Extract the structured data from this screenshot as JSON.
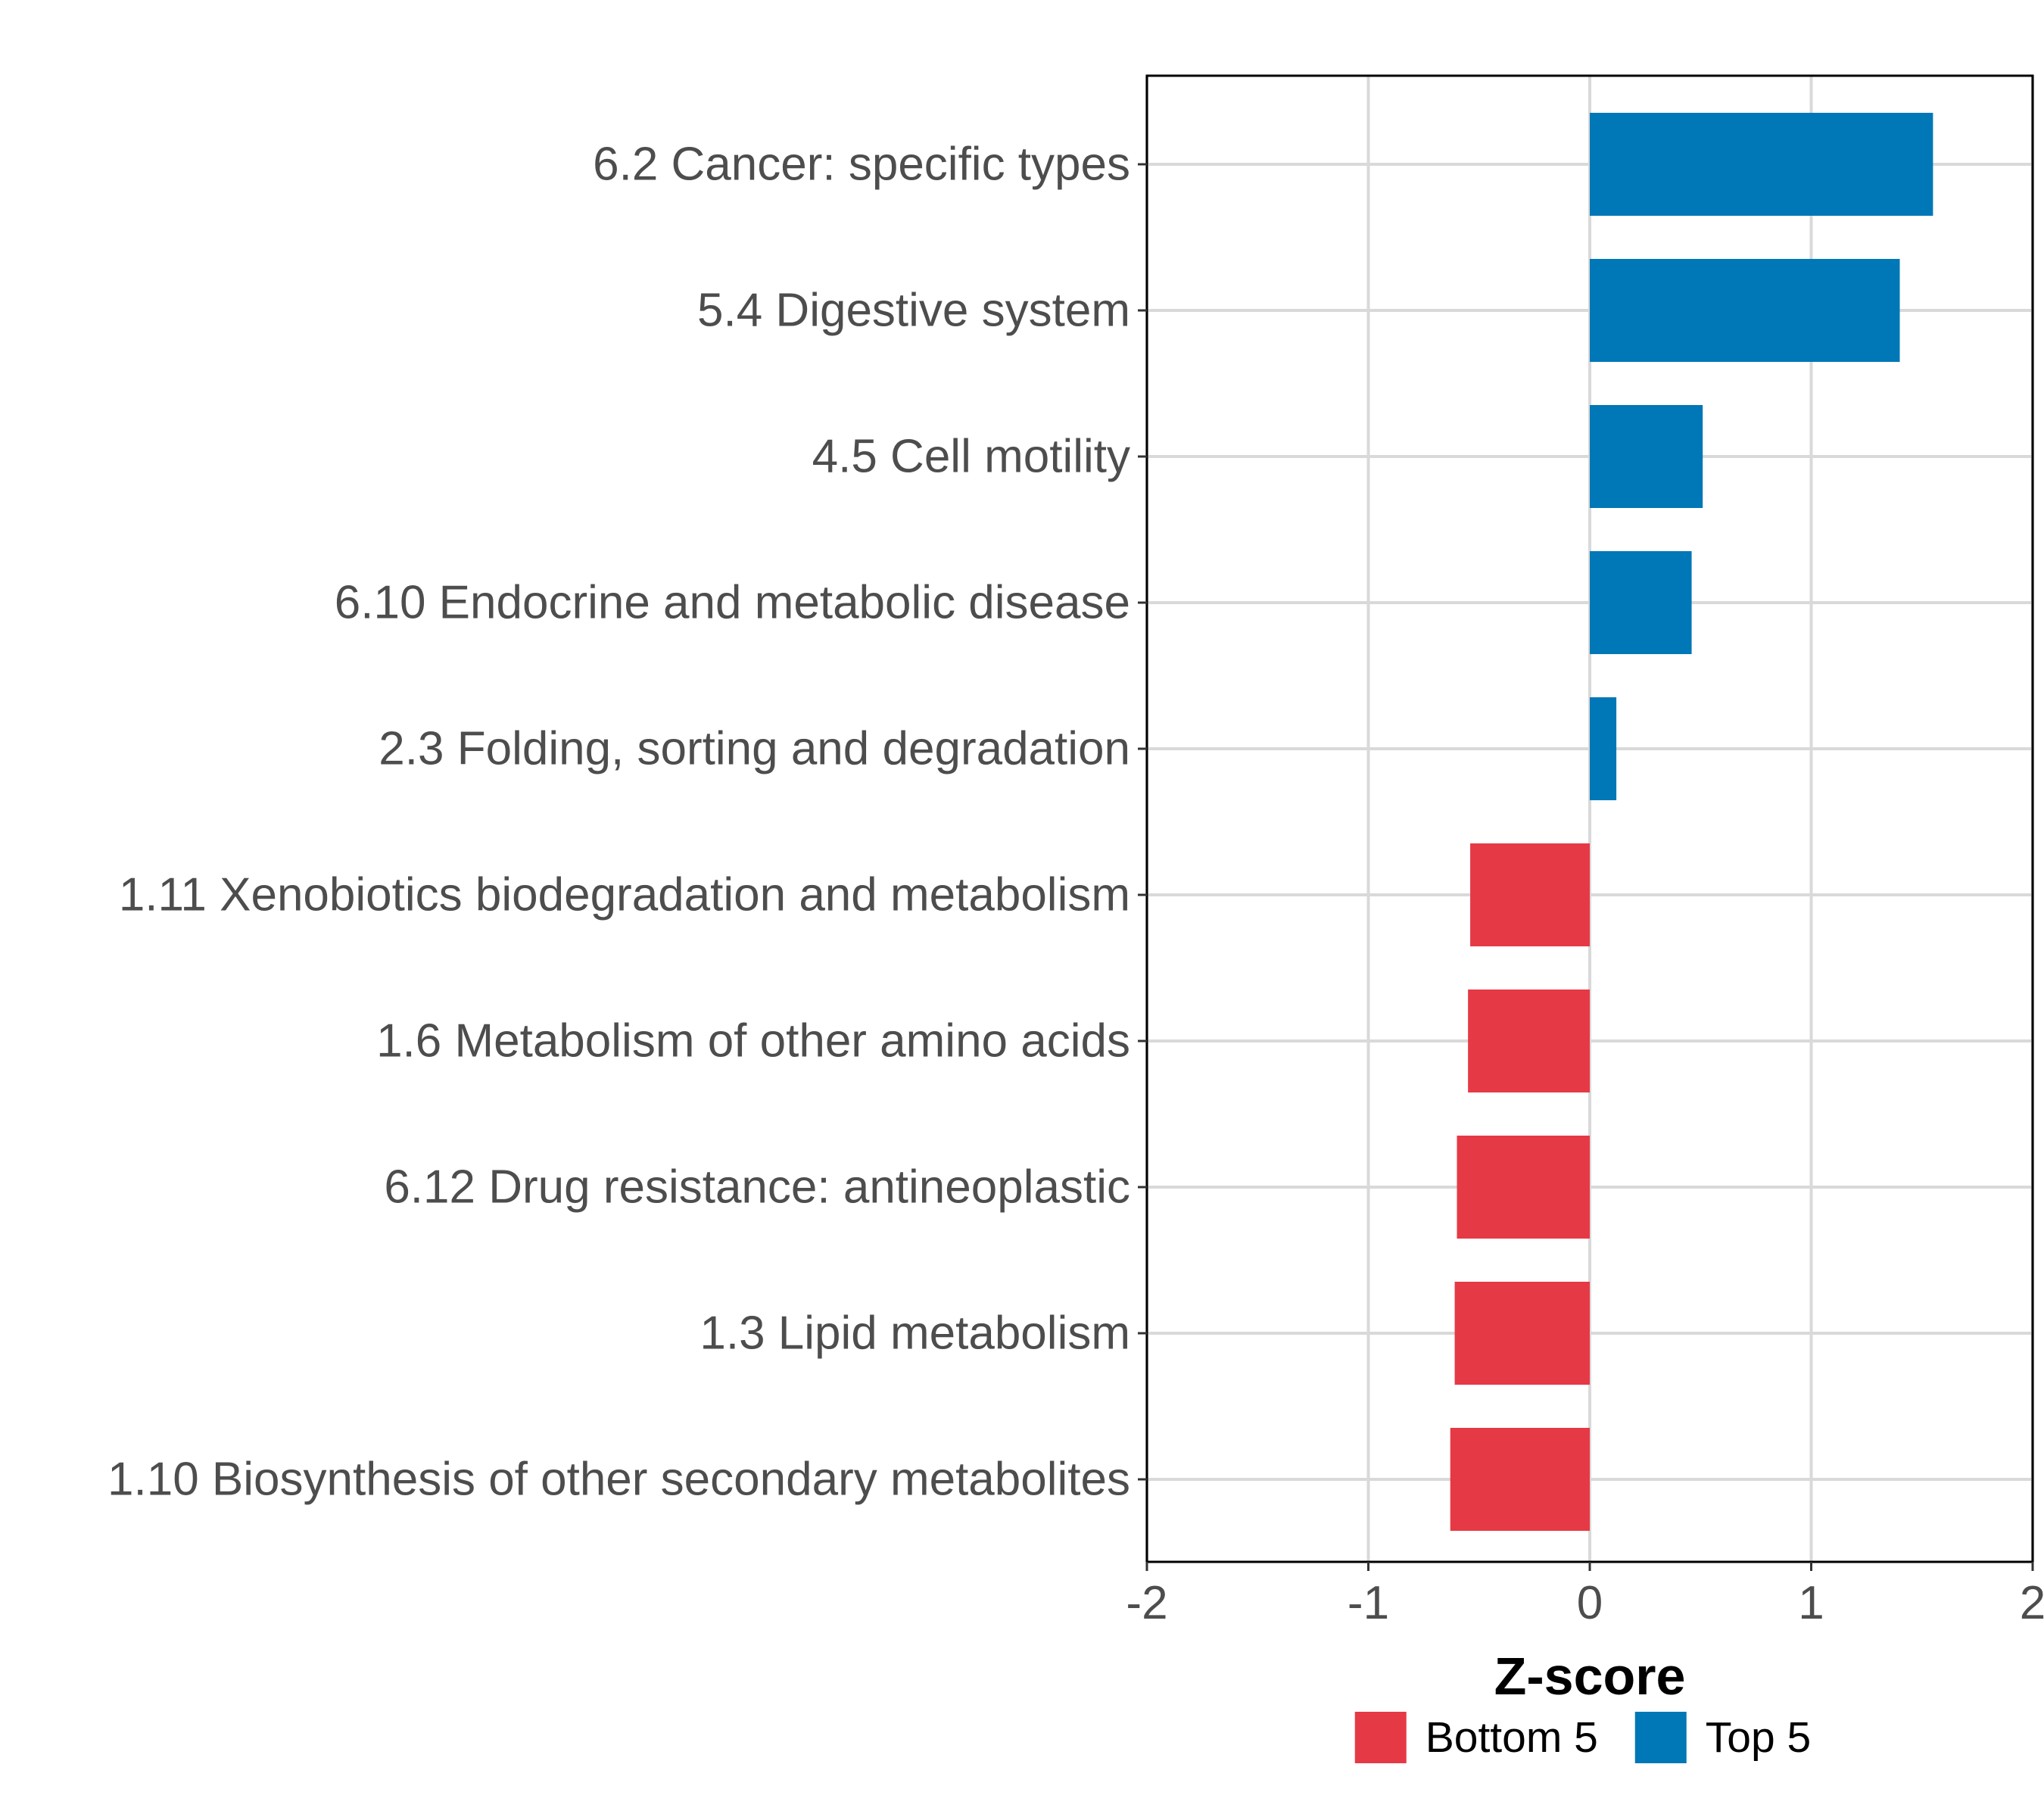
{
  "chart_data": {
    "type": "bar",
    "orientation": "horizontal",
    "title": "",
    "xlabel": "Z-score",
    "ylabel": "",
    "xlim": [
      -2,
      2
    ],
    "xticks": [
      -2,
      -1,
      0,
      1,
      2
    ],
    "xtick_labels": [
      "-2",
      "-1",
      "0",
      "1",
      "2"
    ],
    "grid": true,
    "legend_position": "bottom",
    "categories": [
      "6.2 Cancer: specific types",
      "5.4 Digestive system",
      "4.5 Cell motility",
      "6.10 Endocrine and metabolic disease",
      "2.3 Folding, sorting and degradation",
      "1.11 Xenobiotics biodegradation and metabolism",
      "1.6 Metabolism of other amino acids",
      "6.12 Drug resistance: antineoplastic",
      "1.3 Lipid metabolism",
      "1.10 Biosynthesis of other secondary metabolites"
    ],
    "values": [
      1.55,
      1.4,
      0.51,
      0.46,
      0.12,
      -0.54,
      -0.55,
      -0.6,
      -0.61,
      -0.63
    ],
    "groups": [
      "Top 5",
      "Top 5",
      "Top 5",
      "Top 5",
      "Top 5",
      "Bottom 5",
      "Bottom 5",
      "Bottom 5",
      "Bottom 5",
      "Bottom 5"
    ],
    "legend": [
      {
        "name": "Bottom 5",
        "color": "#E63946"
      },
      {
        "name": "Top 5",
        "color": "#0077B6"
      }
    ]
  }
}
